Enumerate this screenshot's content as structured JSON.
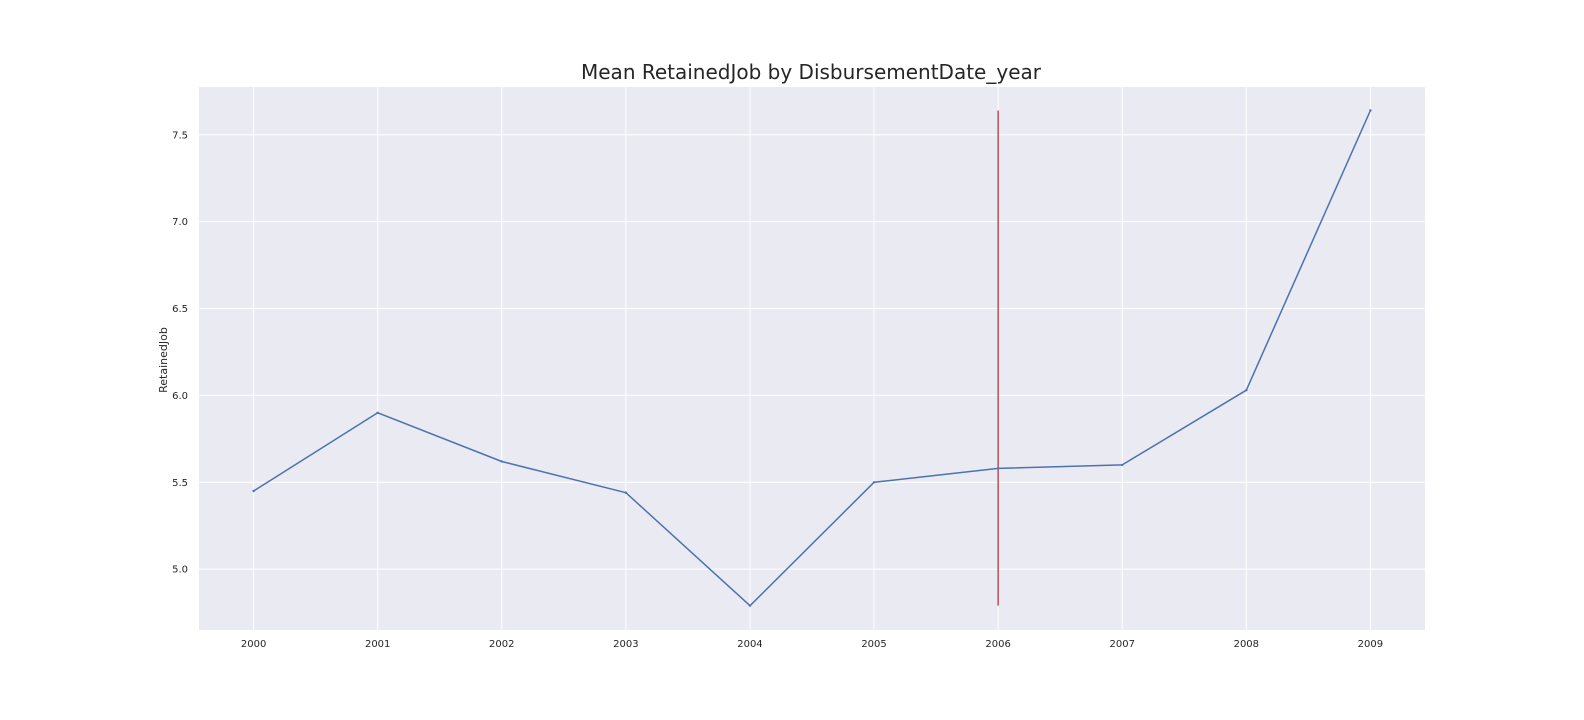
{
  "chart_data": {
    "type": "line",
    "title": "Mean RetainedJob by DisbursementDate_year",
    "xlabel": "",
    "ylabel": "RetainedJob",
    "x": [
      2000,
      2001,
      2002,
      2003,
      2004,
      2005,
      2006,
      2007,
      2008,
      2009
    ],
    "x_tick_labels": [
      "2000",
      "2001",
      "2002",
      "2003",
      "2004",
      "2005",
      "2006",
      "2007",
      "2008",
      "2009"
    ],
    "series": [
      {
        "values": [
          5.45,
          5.9,
          5.62,
          5.44,
          4.79,
          5.5,
          5.58,
          5.6,
          6.03,
          7.64
        ],
        "color": "#4c72b0"
      }
    ],
    "vertical_marker": {
      "x": 2006,
      "y_range": [
        4.79,
        7.64
      ],
      "color": "#c44e52"
    },
    "y_ticks": [
      5.0,
      5.5,
      6.0,
      6.5,
      7.0,
      7.5
    ],
    "y_tick_labels": [
      "5.0",
      "5.5",
      "6.0",
      "6.5",
      "7.0",
      "7.5"
    ],
    "xlim": [
      1999.56,
      2009.44
    ],
    "ylim": [
      4.65,
      7.775
    ],
    "grid": true,
    "background_color": "#eaeaf2",
    "grid_color": "#ffffff"
  }
}
